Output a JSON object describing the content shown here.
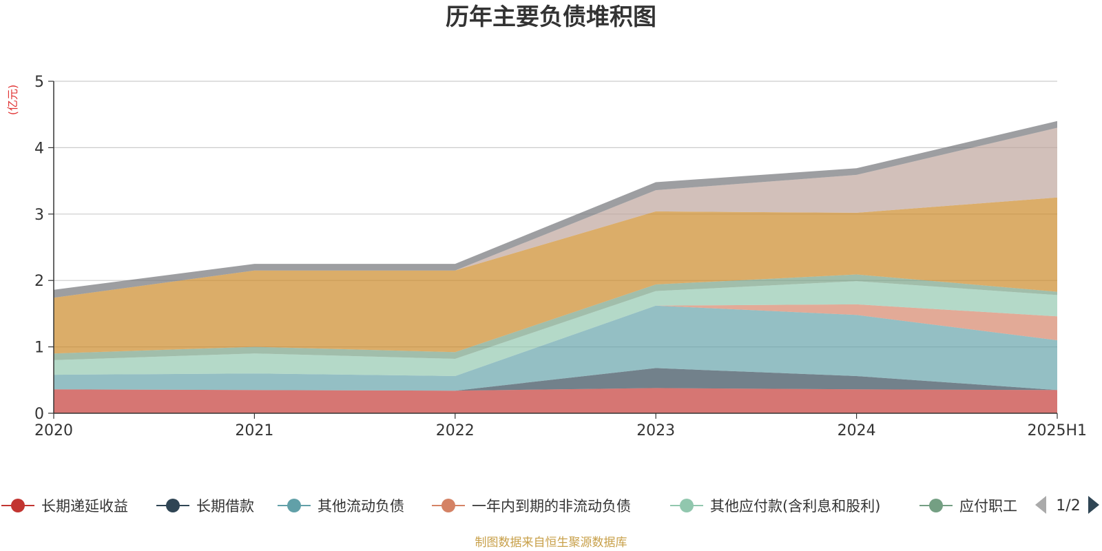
{
  "chart_data": {
    "type": "area",
    "stacked": true,
    "title": "历年主要负债堆积图",
    "unit": "(亿元)",
    "categories": [
      "2020",
      "2021",
      "2022",
      "2023",
      "2024",
      "2025H1"
    ],
    "ylim": [
      0,
      5
    ],
    "yticks": [
      "0",
      "1",
      "2",
      "3",
      "4",
      "5"
    ],
    "grid": true,
    "series": [
      {
        "name": "长期递延收益",
        "color": "#c23531",
        "values": [
          0.36,
          0.35,
          0.34,
          0.38,
          0.36,
          0.35
        ]
      },
      {
        "name": "长期借款",
        "color": "#2f4554",
        "values": [
          0.0,
          0.0,
          0.0,
          0.3,
          0.2,
          0.0
        ]
      },
      {
        "name": "其他流动负债",
        "color": "#61a0a8",
        "values": [
          0.22,
          0.25,
          0.22,
          0.94,
          0.92,
          0.75
        ]
      },
      {
        "name": "一年内到期的非流动负债",
        "color": "#d48265",
        "values": [
          0.0,
          0.0,
          0.0,
          0.0,
          0.16,
          0.36
        ]
      },
      {
        "name": "其他应付款(含利息和股利)",
        "color": "#91c7ae",
        "values": [
          0.22,
          0.3,
          0.26,
          0.22,
          0.35,
          0.32
        ]
      },
      {
        "name": "应付职工薪酬",
        "color": "#749f83",
        "values": [
          0.1,
          0.1,
          0.1,
          0.1,
          0.1,
          0.05
        ]
      },
      {
        "name": "",
        "color": "#ca8622",
        "values": [
          0.84,
          1.15,
          1.23,
          1.1,
          0.93,
          1.42
        ]
      },
      {
        "name": "",
        "color": "#bda29a",
        "values": [
          0.0,
          0.0,
          0.0,
          0.32,
          0.57,
          1.05
        ]
      },
      {
        "name": "",
        "color": "#6e7074",
        "values": [
          0.12,
          0.1,
          0.1,
          0.12,
          0.1,
          0.1
        ]
      }
    ]
  },
  "legend": {
    "items": [
      {
        "label": "长期递延收益",
        "color": "#c23531"
      },
      {
        "label": "长期借款",
        "color": "#2f4554"
      },
      {
        "label": "其他流动负债",
        "color": "#61a0a8"
      },
      {
        "label": "一年内到期的非流动负债",
        "color": "#d48265"
      },
      {
        "label": "其他应付款(含利息和股利)",
        "color": "#91c7ae"
      },
      {
        "label": "应付职工",
        "color": "#749f83"
      }
    ],
    "page_indicator": "1/2"
  },
  "source_note": "制图数据来自恒生聚源数据库"
}
